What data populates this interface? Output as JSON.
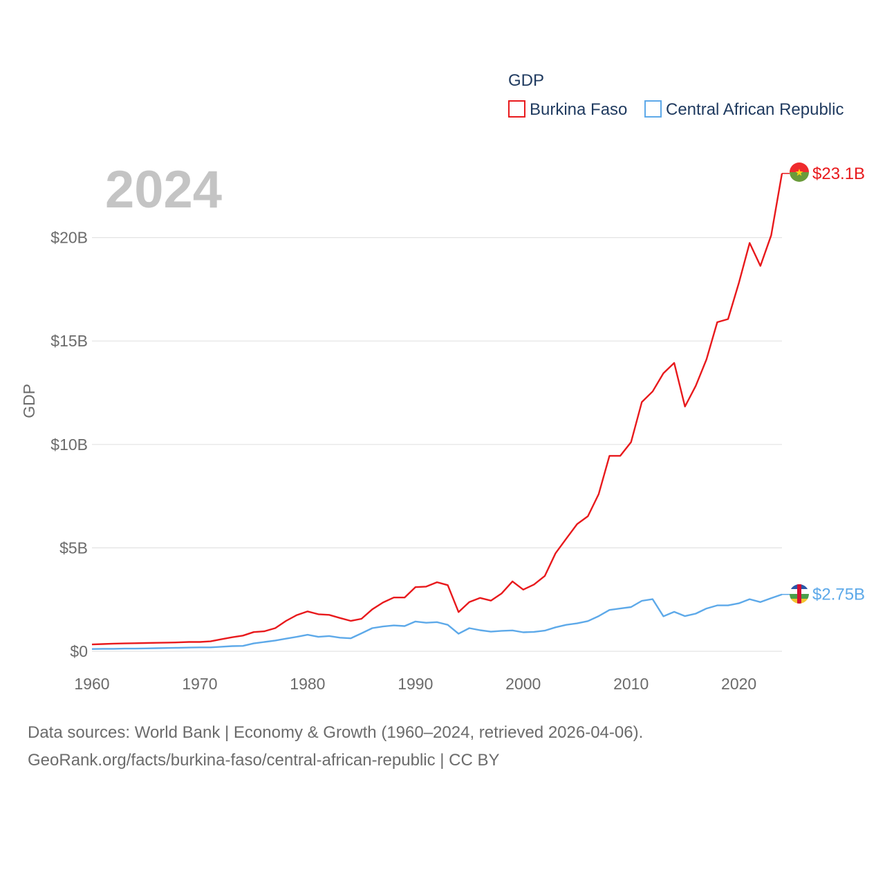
{
  "chart_data": {
    "type": "line",
    "ylabel": "GDP",
    "xlabel": "",
    "current_year": "2024",
    "x": [
      1960,
      1961,
      1962,
      1963,
      1964,
      1965,
      1966,
      1967,
      1968,
      1969,
      1970,
      1971,
      1972,
      1973,
      1974,
      1975,
      1976,
      1977,
      1978,
      1979,
      1980,
      1981,
      1982,
      1983,
      1984,
      1985,
      1986,
      1987,
      1988,
      1989,
      1990,
      1991,
      1992,
      1993,
      1994,
      1995,
      1996,
      1997,
      1998,
      1999,
      2000,
      2001,
      2002,
      2003,
      2004,
      2005,
      2006,
      2007,
      2008,
      2009,
      2010,
      2011,
      2012,
      2013,
      2014,
      2015,
      2016,
      2017,
      2018,
      2019,
      2020,
      2021,
      2022,
      2023,
      2024
    ],
    "xlim": [
      1960,
      2024
    ],
    "ylim": [
      0,
      25
    ],
    "y_unit": "billions USD",
    "x_ticks": [
      1960,
      1970,
      1980,
      1990,
      2000,
      2010,
      2020
    ],
    "x_tick_labels": [
      "1960",
      "1970",
      "1980",
      "1990",
      "2000",
      "2010",
      "2020"
    ],
    "y_ticks": [
      0,
      5,
      10,
      15,
      20
    ],
    "y_tick_labels": [
      "$0",
      "$5B",
      "$10B",
      "$15B",
      "$20B"
    ],
    "legend": {
      "title": "GDP",
      "position": "top-right"
    },
    "series": [
      {
        "name": "Burkina Faso",
        "color": "#e8191c",
        "end_label": "$23.1B",
        "values": [
          0.33,
          0.35,
          0.37,
          0.38,
          0.39,
          0.4,
          0.41,
          0.42,
          0.43,
          0.45,
          0.45,
          0.48,
          0.58,
          0.68,
          0.76,
          0.93,
          0.97,
          1.12,
          1.47,
          1.75,
          1.93,
          1.79,
          1.76,
          1.61,
          1.47,
          1.57,
          2.03,
          2.36,
          2.6,
          2.6,
          3.1,
          3.13,
          3.34,
          3.2,
          1.9,
          2.38,
          2.58,
          2.45,
          2.8,
          3.38,
          2.98,
          3.23,
          3.64,
          4.74,
          5.45,
          6.15,
          6.53,
          7.6,
          9.45,
          9.45,
          10.11,
          12.05,
          12.56,
          13.44,
          13.94,
          11.83,
          12.83,
          14.11,
          15.91,
          16.06,
          17.8,
          19.74,
          18.63,
          20.11,
          23.1
        ]
      },
      {
        "name": "Central African Republic",
        "color": "#5da9e9",
        "end_label": "$2.75B",
        "values": [
          0.11,
          0.12,
          0.12,
          0.13,
          0.13,
          0.14,
          0.15,
          0.16,
          0.17,
          0.18,
          0.19,
          0.19,
          0.22,
          0.25,
          0.26,
          0.38,
          0.45,
          0.52,
          0.61,
          0.7,
          0.8,
          0.7,
          0.74,
          0.66,
          0.63,
          0.87,
          1.12,
          1.2,
          1.25,
          1.22,
          1.44,
          1.38,
          1.41,
          1.28,
          0.85,
          1.12,
          1.02,
          0.95,
          0.99,
          1.01,
          0.92,
          0.94,
          1.0,
          1.16,
          1.28,
          1.35,
          1.46,
          1.7,
          2.0,
          2.07,
          2.14,
          2.44,
          2.52,
          1.69,
          1.91,
          1.7,
          1.82,
          2.07,
          2.22,
          2.22,
          2.32,
          2.52,
          2.38,
          2.57,
          2.75
        ]
      }
    ]
  },
  "footer": {
    "line1": "Data sources: World Bank | Economy & Growth (1960–2024, retrieved 2026-04-06).",
    "line2": "GeoRank.org/facts/burkina-faso/central-african-republic | CC BY"
  }
}
